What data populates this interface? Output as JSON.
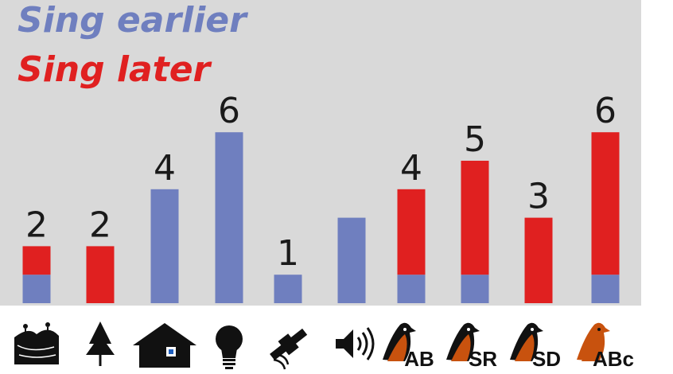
{
  "legend": {
    "earlier": {
      "label": "Sing earlier",
      "color": "#6f7fbf"
    },
    "later": {
      "label": "Sing later",
      "color": "#e02020"
    }
  },
  "chart_data": {
    "type": "bar",
    "stacked": true,
    "categories": [
      "natural-landscape-icon",
      "vegetation-tree-icon",
      "house-icon",
      "light-bulb-icon",
      "satellite-icon",
      "speaker-noise-icon",
      "bird-AB-icon",
      "bird-SR-icon",
      "bird-SD-icon",
      "bird-ABc-icon"
    ],
    "icon_labels": [
      "",
      "",
      "",
      "",
      "",
      "",
      "AB",
      "SR",
      "SD",
      "ABc"
    ],
    "series": [
      {
        "name": "Sing earlier",
        "color": "#6f7fbf",
        "values": [
          1,
          0,
          4,
          6,
          1,
          3,
          1,
          1,
          0,
          1
        ]
      },
      {
        "name": "Sing later",
        "color": "#e02020",
        "values": [
          1,
          2,
          0,
          0,
          0,
          0,
          3,
          4,
          3,
          5
        ]
      }
    ],
    "data_labels": [
      "2",
      "2",
      "4",
      "6",
      "1",
      "",
      "4",
      "5",
      "3",
      "6"
    ],
    "ylim": [
      0,
      6
    ],
    "grid": false,
    "legend_position": "top-left"
  }
}
